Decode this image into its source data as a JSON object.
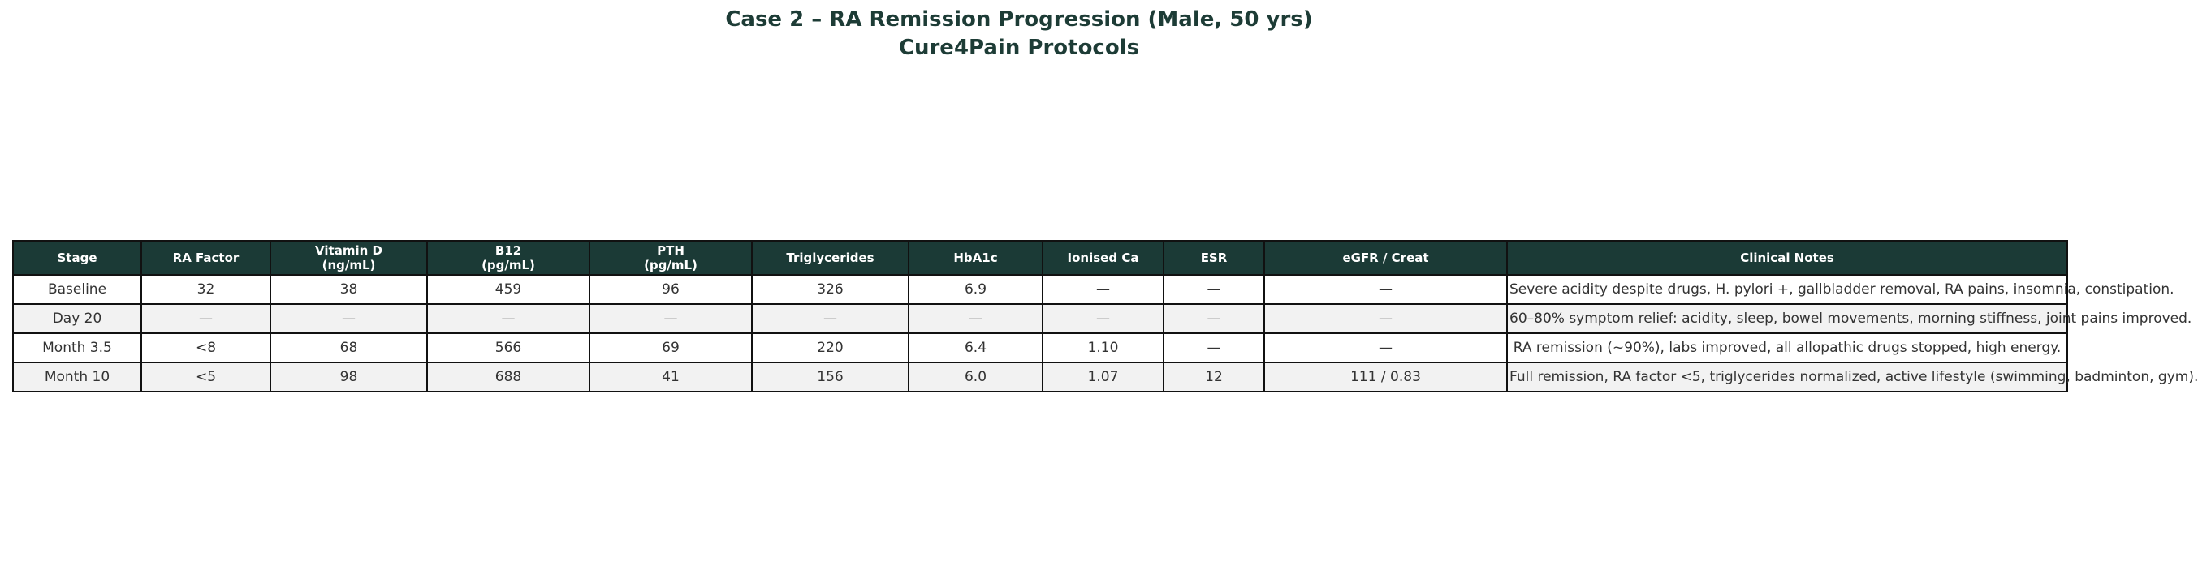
{
  "title": {
    "line1": "Case 2 – RA Remission Progression (Male, 50 yrs)",
    "line2": "Cure4Pain Protocols"
  },
  "table": {
    "headers": {
      "stage": "Stage",
      "ra_factor": "RA Factor",
      "vitamin_d": "Vitamin D\n(ng/mL)",
      "b12": "B12\n(pg/mL)",
      "pth": "PTH\n(pg/mL)",
      "triglycerides": "Triglycerides",
      "hba1c": "HbA1c",
      "ionised_ca": "Ionised Ca",
      "esr": "ESR",
      "egfr_creat": "eGFR / Creat",
      "notes": "Clinical Notes"
    },
    "rows": [
      {
        "stage": "Baseline",
        "ra_factor": "32",
        "vitamin_d": "38",
        "b12": "459",
        "pth": "96",
        "triglycerides": "326",
        "hba1c": "6.9",
        "ionised_ca": "—",
        "esr": "—",
        "egfr_creat": "—",
        "notes": "Severe acidity despite drugs, H. pylori +, gallbladder removal, RA pains, insomnia, constipation."
      },
      {
        "stage": "Day 20",
        "ra_factor": "—",
        "vitamin_d": "—",
        "b12": "—",
        "pth": "—",
        "triglycerides": "—",
        "hba1c": "—",
        "ionised_ca": "—",
        "esr": "—",
        "egfr_creat": "—",
        "notes": "60–80% symptom relief: acidity, sleep, bowel movements, morning stiffness, joint pains improved."
      },
      {
        "stage": "Month 3.5",
        "ra_factor": "<8",
        "vitamin_d": "68",
        "b12": "566",
        "pth": "69",
        "triglycerides": "220",
        "hba1c": "6.4",
        "ionised_ca": "1.10",
        "esr": "—",
        "egfr_creat": "—",
        "notes": "RA remission (~90%), labs improved, all allopathic drugs stopped, high energy."
      },
      {
        "stage": "Month 10",
        "ra_factor": "<5",
        "vitamin_d": "98",
        "b12": "688",
        "pth": "41",
        "triglycerides": "156",
        "hba1c": "6.0",
        "ionised_ca": "1.07",
        "esr": "12",
        "egfr_creat": "111 / 0.83",
        "notes": "Full remission, RA factor <5, triglycerides normalized, active lifestyle (swimming, badminton, gym)."
      }
    ]
  },
  "colors": {
    "header_bg": "#1b3a36",
    "title_text": "#1d3c36",
    "alt_row_bg": "#f2f2f2",
    "border": "#111111",
    "cell_text": "#333333"
  }
}
